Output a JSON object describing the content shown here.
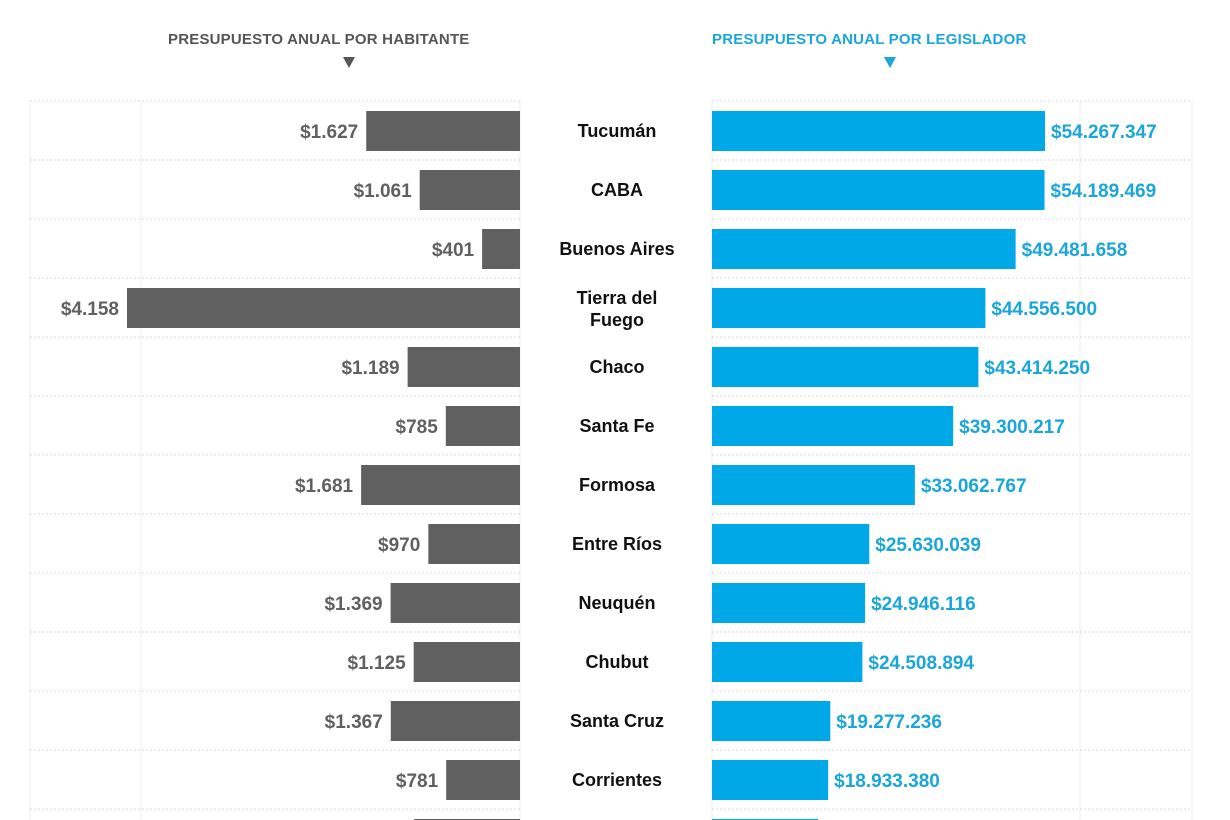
{
  "chart_data": [
    {
      "type": "bar",
      "orientation": "horizontal-leftward",
      "title": "PRESUPUESTO ANUAL POR HABITANTE",
      "color": "#606060",
      "label_color": "#606060",
      "categories": [
        "Tucumán",
        "CABA",
        "Buenos  Aires",
        "Tierra del Fuego",
        "Chaco",
        "Santa Fe",
        "Formosa",
        "Entre Ríos",
        "Neuquén",
        "Chubut",
        "Santa Cruz",
        "Corrientes",
        ""
      ],
      "values": [
        1627,
        1061,
        401,
        4158,
        1189,
        785,
        1681,
        970,
        1369,
        1125,
        1367,
        781,
        1120
      ],
      "labels": [
        "$1.627",
        "$1.061",
        "$401",
        "$4.158",
        "$1.189",
        "$785",
        "$1.681",
        "$970",
        "$1.369",
        "$1.125",
        "$1.367",
        "$781",
        ""
      ]
    },
    {
      "type": "bar",
      "orientation": "horizontal",
      "title": "PRESUPUESTO ANUAL POR LEGISLADOR",
      "color": "#00a8e8",
      "label_color": "#1aa6d9",
      "categories": [
        "Tucumán",
        "CABA",
        "Buenos  Aires",
        "Tierra del Fuego",
        "Chaco",
        "Santa Fe",
        "Formosa",
        "Entre Ríos",
        "Neuquén",
        "Chubut",
        "Santa Cruz",
        "Corrientes",
        ""
      ],
      "values": [
        54267347,
        54189469,
        49481658,
        44556500,
        43414250,
        39300217,
        33062767,
        25630039,
        24946116,
        24508894,
        19277236,
        18933380,
        17300000
      ],
      "labels": [
        "$54.267.347",
        "$54.189.469",
        "$49.481.658",
        "$44.556.500",
        "$43.414.250",
        "$39.300.217",
        "$33.062.767",
        "$25.630.039",
        "$24.946.116",
        "$24.508.894",
        "$19.277.236",
        "$18.933.380",
        ""
      ]
    }
  ],
  "category_lines": {
    "Tierra del Fuego": [
      "Tierra del",
      "Fuego"
    ]
  },
  "grid": true
}
